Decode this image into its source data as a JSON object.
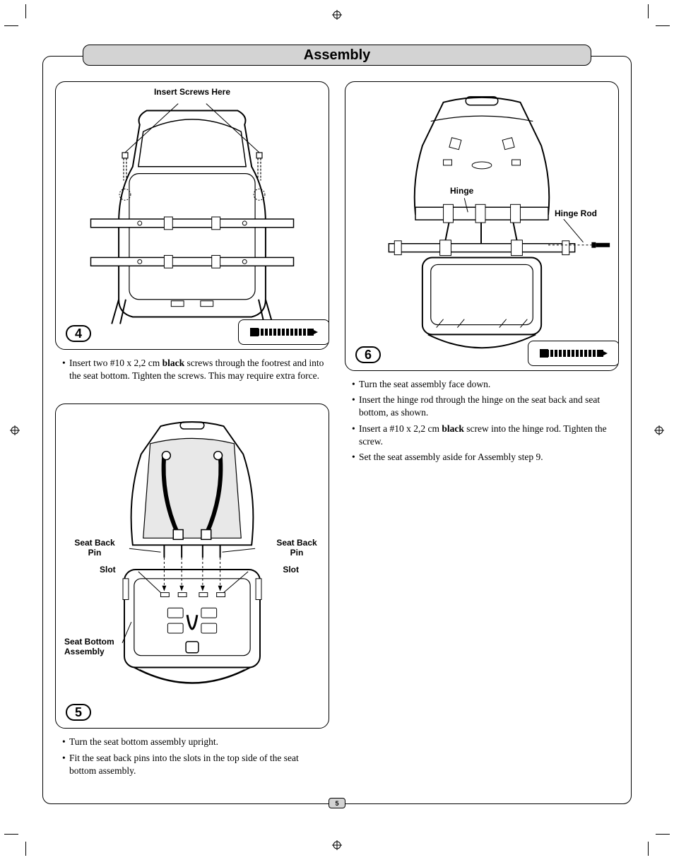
{
  "page": {
    "title": "Assembly",
    "page_number": "5",
    "background_color": "#ffffff",
    "title_bar_bg": "#d3d3d3",
    "border_color": "#000000",
    "font_body": "Times New Roman",
    "font_label": "Arial"
  },
  "figures": {
    "fig4": {
      "step_number": "4",
      "callouts": {
        "insert_screws": "Insert Screws Here"
      },
      "has_screw_icon": true
    },
    "fig5": {
      "step_number": "5",
      "callouts": {
        "seat_back_pin_left": "Seat Back\nPin",
        "seat_back_pin_right": "Seat Back\nPin",
        "slot_left": "Slot",
        "slot_right": "Slot",
        "seat_bottom_assembly": "Seat Bottom\nAssembly"
      },
      "has_screw_icon": false
    },
    "fig6": {
      "step_number": "6",
      "callouts": {
        "hinge": "Hinge",
        "hinge_rod": "Hinge Rod"
      },
      "has_screw_icon": true
    }
  },
  "instructions": {
    "step4": [
      {
        "pre": "Insert two #10 x 2,2 cm ",
        "bold": "black",
        "post": " screws through the footrest and into the seat bottom. Tighten the screws. This may require extra force."
      }
    ],
    "step5": [
      {
        "text": "Turn the seat bottom assembly upright."
      },
      {
        "text": "Fit the seat back pins into the slots in the top side of the seat bottom assembly."
      }
    ],
    "step6": [
      {
        "text": "Turn the seat assembly face down."
      },
      {
        "text": "Insert the hinge rod through the hinge on the seat back and seat bottom, as shown."
      },
      {
        "pre": "Insert a #10 x 2,2 cm ",
        "bold": "black",
        "post": " screw into the hinge rod. Tighten the screw."
      },
      {
        "text": "Set the seat assembly aside for Assembly step 9."
      }
    ]
  },
  "icons": {
    "screw_color": "#000000"
  }
}
